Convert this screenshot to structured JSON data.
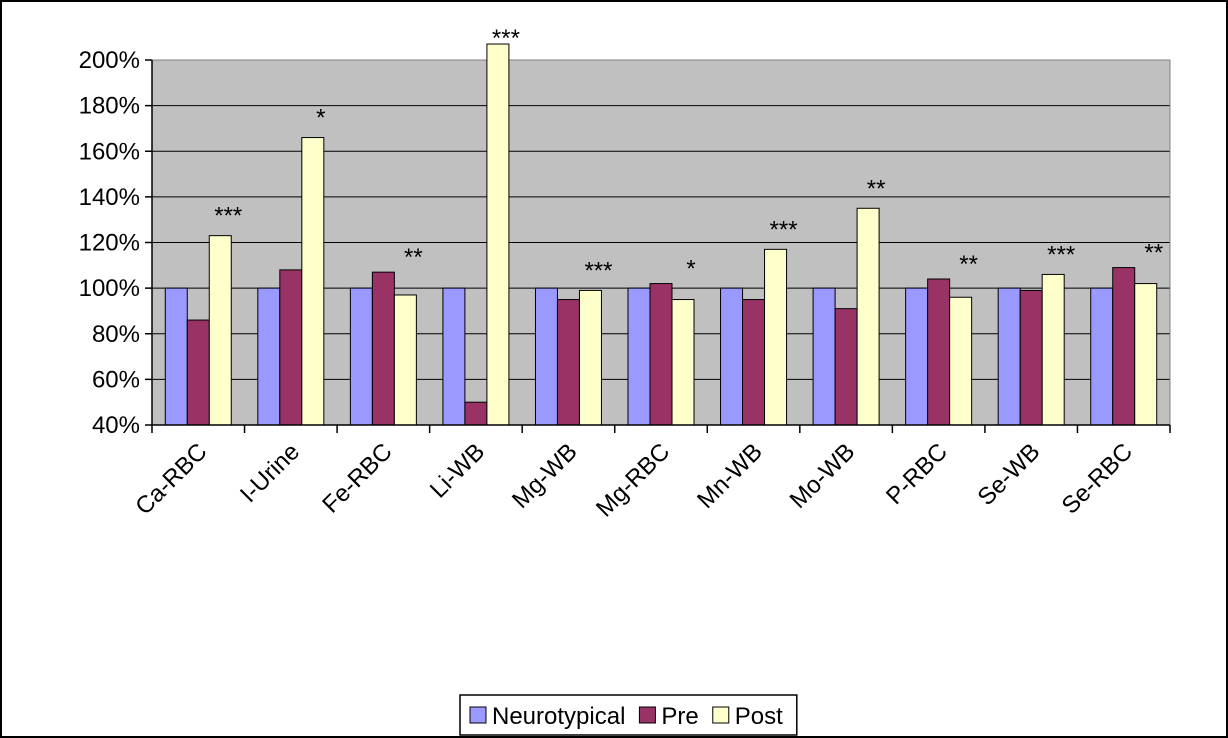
{
  "chart_data": {
    "type": "bar",
    "categories": [
      "Ca-RBC",
      "I-Urine",
      "Fe-RBC",
      "Li-WB",
      "Mg-WB",
      "Mg-RBC",
      "Mn-WB",
      "Mo-WB",
      "P-RBC",
      "Se-WB",
      "Se-RBC"
    ],
    "series": [
      {
        "name": "Neurotypical",
        "color": "#9999ff",
        "values": [
          100,
          100,
          100,
          100,
          100,
          100,
          100,
          100,
          100,
          100,
          100
        ]
      },
      {
        "name": "Pre",
        "color": "#993366",
        "values": [
          86,
          108,
          107,
          50,
          95,
          102,
          95,
          91,
          104,
          99,
          109
        ]
      },
      {
        "name": "Post",
        "color": "#ffffcc",
        "values": [
          123,
          166,
          97,
          207,
          99,
          95,
          117,
          135,
          96,
          106,
          102
        ]
      }
    ],
    "annotations": [
      "***",
      "*",
      "**",
      "***",
      "***",
      "*",
      "***",
      "**",
      "**",
      "***",
      "**"
    ],
    "ylim": [
      40,
      200
    ],
    "yticks": [
      {
        "value": 40,
        "label": "40%"
      },
      {
        "value": 60,
        "label": "60%"
      },
      {
        "value": 80,
        "label": "80%"
      },
      {
        "value": 100,
        "label": "100%"
      },
      {
        "value": 120,
        "label": "120%"
      },
      {
        "value": 140,
        "label": "140%"
      },
      {
        "value": 160,
        "label": "160%"
      },
      {
        "value": 180,
        "label": "180%"
      },
      {
        "value": 200,
        "label": "200%"
      }
    ],
    "grid": true,
    "legend": "bottom"
  }
}
